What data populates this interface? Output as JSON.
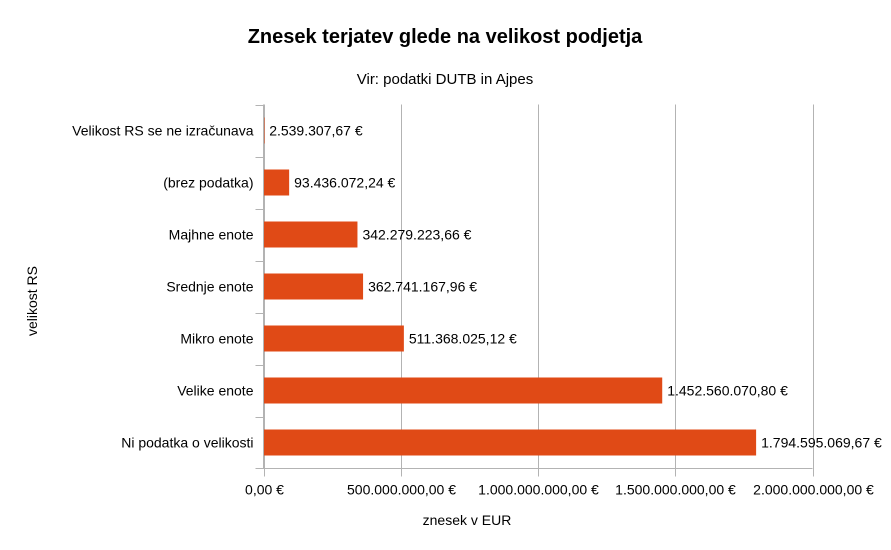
{
  "colors": {
    "bar": "#e04a16",
    "grid": "#b3b3b3",
    "axis": "#b3b3b3",
    "text": "#000000",
    "background": "#ffffff"
  },
  "chart_data": {
    "type": "bar",
    "orientation": "horizontal",
    "title": "Znesek terjatev glede na velikost podjetja",
    "subtitle": "Vir: podatki DUTB in Ajpes",
    "xlabel": "znesek v EUR",
    "ylabel": "velikost RS",
    "xlim": [
      0,
      2000000000
    ],
    "x_ticks": [
      0,
      500000000,
      1000000000,
      1500000000,
      2000000000
    ],
    "x_tick_labels": [
      "0,00 €",
      "500.000.000,00 €",
      "1.000.000.000,00 €",
      "1.500.000.000,00 €",
      "2.000.000.000,00 €"
    ],
    "grid": true,
    "legend": "none",
    "categories": [
      "Velikost RS se ne izračunava",
      "(brez podatka)",
      "Majhne enote",
      "Srednje enote",
      "Mikro enote",
      "Velike enote",
      "Ni podatka o velikosti"
    ],
    "values": [
      2539307.67,
      93436072.24,
      342279223.66,
      362741167.96,
      511368025.12,
      1452560070.8,
      1794595069.67
    ],
    "value_labels": [
      "2.539.307,67 €",
      "93.436.072,24 €",
      "342.279.223,66 €",
      "362.741.167,96 €",
      "511.368.025,12 €",
      "1.452.560.070,80 €",
      "1.794.595.069,67 €"
    ]
  }
}
